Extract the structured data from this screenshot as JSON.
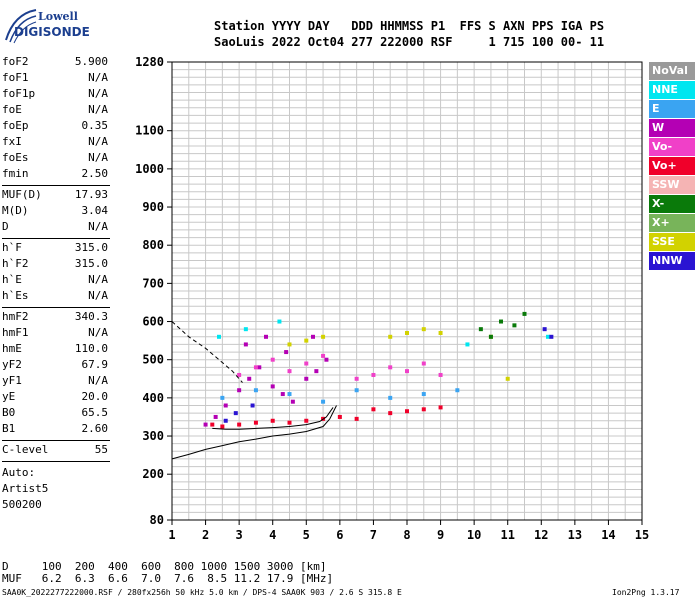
{
  "logo": {
    "line1": "Lowell",
    "line2": "DIGISONDE"
  },
  "header": {
    "line1": "Station YYYY DAY   DDD HHMMSS P1  FFS S AXN PPS IGA PS",
    "line2": "SaoLuis 2022 Oct04 277 222000 RSF     1 715 100 00- 11"
  },
  "params": [
    {
      "k": "foF2",
      "v": "5.900"
    },
    {
      "k": "foF1",
      "v": "N/A"
    },
    {
      "k": "foF1p",
      "v": "N/A"
    },
    {
      "k": "foE",
      "v": "N/A"
    },
    {
      "k": "foEp",
      "v": "0.35"
    },
    {
      "k": "fxI",
      "v": "N/A"
    },
    {
      "k": "foEs",
      "v": "N/A"
    },
    {
      "k": "fmin",
      "v": "2.50"
    },
    {
      "k": "MUF(D)",
      "v": "17.93"
    },
    {
      "k": "M(D)",
      "v": "3.04"
    },
    {
      "k": "D",
      "v": "N/A"
    },
    {
      "k": "h`F",
      "v": "315.0"
    },
    {
      "k": "h`F2",
      "v": "315.0"
    },
    {
      "k": "h`E",
      "v": "N/A"
    },
    {
      "k": "h`Es",
      "v": "N/A"
    },
    {
      "k": "hmF2",
      "v": "340.3"
    },
    {
      "k": "hmF1",
      "v": "N/A"
    },
    {
      "k": "hmE",
      "v": "110.0"
    },
    {
      "k": "yF2",
      "v": "67.9"
    },
    {
      "k": "yF1",
      "v": "N/A"
    },
    {
      "k": "yE",
      "v": "20.0"
    },
    {
      "k": "B0",
      "v": "65.5"
    },
    {
      "k": "B1",
      "v": "2.60"
    },
    {
      "k": "C-level",
      "v": "55"
    }
  ],
  "autoscale": {
    "l1": "Auto:",
    "l2": "Artist5",
    "l3": "500200"
  },
  "legend": [
    {
      "label": "NoVal",
      "color": "#9a9a9a"
    },
    {
      "label": "NNE",
      "color": "#00e6f0"
    },
    {
      "label": "E",
      "color": "#3aa4f2"
    },
    {
      "label": "W",
      "color": "#b400b4"
    },
    {
      "label": "Vo-",
      "color": "#f040c8"
    },
    {
      "label": "Vo+",
      "color": "#f0002a"
    },
    {
      "label": "SSW",
      "color": "#f5b4b4"
    },
    {
      "label": "X-",
      "color": "#0a7a0a"
    },
    {
      "label": "X+",
      "color": "#78b45a"
    },
    {
      "label": "SSE",
      "color": "#d2d200"
    },
    {
      "label": "NNW",
      "color": "#2a14d2"
    }
  ],
  "muf_table": {
    "line1": "D     100  200  400  600  800 1000 1500 3000 [km]",
    "line2": "MUF   6.2  6.3  6.6  7.0  7.6  8.5 11.2 17.9 [MHz]"
  },
  "footer": "SAA0K_2022277222000.RSF / 280fx256h 50 kHz 5.0 km / DPS-4 SAA0K 903 / 2.6 S 315.8 E",
  "version": "Ion2Png 1.3.17",
  "chart_data": {
    "type": "scatter",
    "title": "",
    "xlabel": "",
    "ylabel": "",
    "xlim": [
      1,
      15
    ],
    "ylim": [
      80,
      1280
    ],
    "xticks": [
      1,
      2,
      3,
      4,
      5,
      6,
      7,
      8,
      9,
      10,
      11,
      12,
      13,
      14,
      15
    ],
    "yticks": [
      80,
      200,
      300,
      400,
      500,
      600,
      700,
      800,
      900,
      1000,
      1100,
      1280
    ],
    "grid": true,
    "series": [
      {
        "name": "W",
        "x": [
          2.0,
          2.3,
          2.6,
          3.0,
          3.3,
          3.6,
          4.0,
          4.3,
          4.6,
          5.0,
          5.3,
          5.6,
          3.2,
          3.8,
          4.4,
          5.2
        ],
        "y": [
          330,
          350,
          380,
          420,
          450,
          480,
          430,
          410,
          390,
          450,
          470,
          500,
          540,
          560,
          520,
          560
        ]
      },
      {
        "name": "Vo+",
        "x": [
          2.2,
          2.5,
          3.0,
          3.5,
          4.0,
          4.5,
          5.0,
          5.5,
          6.0,
          6.5,
          7.0,
          7.5,
          8.0,
          8.5,
          9.0
        ],
        "y": [
          330,
          325,
          330,
          335,
          340,
          335,
          340,
          345,
          350,
          345,
          370,
          360,
          365,
          370,
          375
        ]
      },
      {
        "name": "Vo-",
        "x": [
          3.0,
          3.5,
          4.0,
          4.5,
          5.0,
          5.5,
          6.5,
          7.0,
          7.5,
          8.0,
          8.5,
          9.0
        ],
        "y": [
          460,
          480,
          500,
          470,
          490,
          510,
          450,
          460,
          480,
          470,
          490,
          460
        ]
      },
      {
        "name": "SSE",
        "x": [
          4.5,
          5.0,
          5.5,
          7.5,
          8.0,
          8.5,
          9.0,
          10.5,
          11.0
        ],
        "y": [
          540,
          550,
          560,
          560,
          570,
          580,
          570,
          560,
          450
        ]
      },
      {
        "name": "E",
        "x": [
          2.5,
          3.5,
          4.5,
          5.5,
          6.5,
          7.5,
          8.5,
          9.5
        ],
        "y": [
          400,
          420,
          410,
          390,
          420,
          400,
          410,
          420
        ]
      },
      {
        "name": "X-",
        "x": [
          10.2,
          10.8,
          11.2,
          10.5,
          11.5
        ],
        "y": [
          580,
          600,
          590,
          560,
          620
        ]
      },
      {
        "name": "NNE",
        "x": [
          2.4,
          3.2,
          4.2,
          9.8,
          12.2
        ],
        "y": [
          560,
          580,
          600,
          540,
          560
        ]
      },
      {
        "name": "NNW",
        "x": [
          2.6,
          2.9,
          3.4,
          12.1,
          12.3
        ],
        "y": [
          340,
          360,
          380,
          580,
          560
        ]
      }
    ],
    "lines": [
      {
        "name": "profile-1",
        "x": [
          1.0,
          1.5,
          2.0,
          2.5,
          3.0,
          3.5,
          4.0,
          4.5,
          5.0,
          5.5,
          5.7,
          5.9
        ],
        "y": [
          240,
          252,
          265,
          275,
          285,
          292,
          300,
          305,
          312,
          325,
          345,
          380
        ]
      },
      {
        "name": "profile-2",
        "x": [
          2.2,
          2.6,
          3.0,
          3.5,
          4.0,
          4.5,
          5.0,
          5.4,
          5.6,
          5.8
        ],
        "y": [
          320,
          318,
          318,
          320,
          322,
          325,
          330,
          338,
          350,
          375
        ]
      },
      {
        "name": "trace-dashed",
        "x": [
          1.0,
          1.5,
          2.0,
          2.4,
          2.8,
          3.1
        ],
        "y": [
          600,
          560,
          530,
          500,
          470,
          440
        ]
      }
    ]
  }
}
